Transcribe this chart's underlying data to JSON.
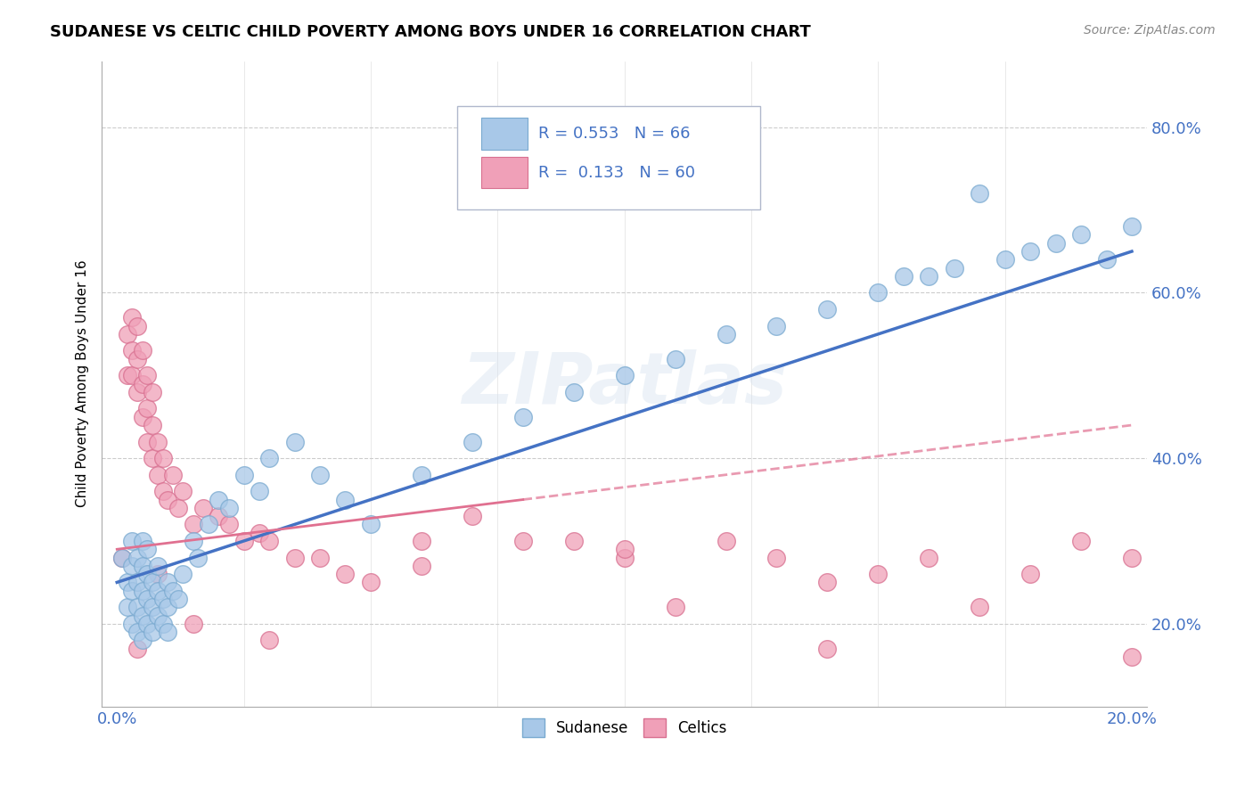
{
  "title": "SUDANESE VS CELTIC CHILD POVERTY AMONG BOYS UNDER 16 CORRELATION CHART",
  "source": "Source: ZipAtlas.com",
  "ylabel": "Child Poverty Among Boys Under 16",
  "ytick_labels": [
    "20.0%",
    "40.0%",
    "60.0%",
    "80.0%"
  ],
  "ytick_values": [
    0.2,
    0.4,
    0.6,
    0.8
  ],
  "xlim": [
    0.0,
    0.2
  ],
  "ylim": [
    0.1,
    0.88
  ],
  "sudanese_color": "#a8c8e8",
  "celtics_color": "#f0a0b8",
  "sudanese_edge": "#7aaad0",
  "celtics_edge": "#d87090",
  "trend_sudanese_color": "#4472c4",
  "trend_celtics_color": "#e07090",
  "watermark": "ZIPatlas",
  "legend_box_color": "#e8eef8",
  "legend_border_color": "#b0b8d0",
  "sudanese_x": [
    0.001,
    0.002,
    0.002,
    0.003,
    0.003,
    0.003,
    0.003,
    0.004,
    0.004,
    0.004,
    0.004,
    0.005,
    0.005,
    0.005,
    0.005,
    0.005,
    0.006,
    0.006,
    0.006,
    0.006,
    0.007,
    0.007,
    0.007,
    0.008,
    0.008,
    0.008,
    0.009,
    0.009,
    0.01,
    0.01,
    0.01,
    0.011,
    0.012,
    0.013,
    0.015,
    0.016,
    0.018,
    0.02,
    0.022,
    0.025,
    0.028,
    0.03,
    0.035,
    0.04,
    0.045,
    0.05,
    0.06,
    0.07,
    0.08,
    0.09,
    0.1,
    0.11,
    0.12,
    0.13,
    0.14,
    0.15,
    0.155,
    0.16,
    0.165,
    0.17,
    0.175,
    0.18,
    0.185,
    0.19,
    0.195,
    0.2
  ],
  "sudanese_y": [
    0.28,
    0.22,
    0.25,
    0.2,
    0.24,
    0.27,
    0.3,
    0.19,
    0.22,
    0.25,
    0.28,
    0.18,
    0.21,
    0.24,
    0.27,
    0.3,
    0.2,
    0.23,
    0.26,
    0.29,
    0.19,
    0.22,
    0.25,
    0.21,
    0.24,
    0.27,
    0.2,
    0.23,
    0.19,
    0.22,
    0.25,
    0.24,
    0.23,
    0.26,
    0.3,
    0.28,
    0.32,
    0.35,
    0.34,
    0.38,
    0.36,
    0.4,
    0.42,
    0.38,
    0.35,
    0.32,
    0.38,
    0.42,
    0.45,
    0.48,
    0.5,
    0.52,
    0.55,
    0.56,
    0.58,
    0.6,
    0.62,
    0.62,
    0.63,
    0.72,
    0.64,
    0.65,
    0.66,
    0.67,
    0.64,
    0.68
  ],
  "celtics_x": [
    0.001,
    0.002,
    0.002,
    0.003,
    0.003,
    0.003,
    0.004,
    0.004,
    0.004,
    0.005,
    0.005,
    0.005,
    0.006,
    0.006,
    0.006,
    0.007,
    0.007,
    0.007,
    0.008,
    0.008,
    0.009,
    0.009,
    0.01,
    0.011,
    0.012,
    0.013,
    0.015,
    0.017,
    0.02,
    0.022,
    0.025,
    0.028,
    0.03,
    0.035,
    0.04,
    0.045,
    0.05,
    0.06,
    0.07,
    0.08,
    0.09,
    0.1,
    0.11,
    0.12,
    0.13,
    0.14,
    0.15,
    0.16,
    0.17,
    0.18,
    0.19,
    0.2,
    0.2,
    0.14,
    0.1,
    0.06,
    0.03,
    0.015,
    0.008,
    0.004
  ],
  "celtics_y": [
    0.28,
    0.5,
    0.55,
    0.5,
    0.53,
    0.57,
    0.48,
    0.52,
    0.56,
    0.45,
    0.49,
    0.53,
    0.42,
    0.46,
    0.5,
    0.4,
    0.44,
    0.48,
    0.38,
    0.42,
    0.36,
    0.4,
    0.35,
    0.38,
    0.34,
    0.36,
    0.32,
    0.34,
    0.33,
    0.32,
    0.3,
    0.31,
    0.3,
    0.28,
    0.28,
    0.26,
    0.25,
    0.27,
    0.33,
    0.3,
    0.3,
    0.28,
    0.22,
    0.3,
    0.28,
    0.25,
    0.26,
    0.28,
    0.22,
    0.26,
    0.3,
    0.28,
    0.16,
    0.17,
    0.29,
    0.3,
    0.18,
    0.2,
    0.26,
    0.17
  ],
  "trend_s_x0": 0.0,
  "trend_s_x1": 0.2,
  "trend_s_y0": 0.25,
  "trend_s_y1": 0.65,
  "trend_c_x0": 0.0,
  "trend_c_x1": 0.2,
  "trend_c_y0": 0.29,
  "trend_c_y1": 0.44
}
